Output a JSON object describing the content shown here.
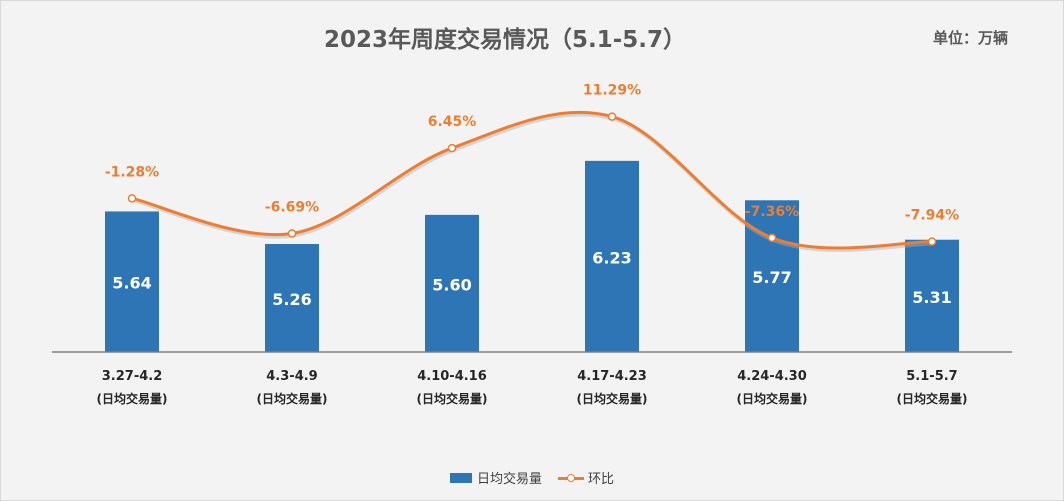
{
  "chart_data": {
    "type": "bar",
    "title": "2023年周度交易情况（5.1-5.7）",
    "unit_label": "单位：万辆",
    "categories": [
      "3.27-4.2",
      "4.3-4.9",
      "4.10-4.16",
      "4.17-4.23",
      "4.24-4.30",
      "5.1-5.7"
    ],
    "category_sublabel": "(日均交易量)",
    "series": [
      {
        "name": "日均交易量",
        "type": "bar",
        "values": [
          5.64,
          5.26,
          5.6,
          6.23,
          5.77,
          5.31
        ],
        "labels": [
          "5.64",
          "5.26",
          "5.60",
          "6.23",
          "5.77",
          "5.31"
        ],
        "color": "#2e75b6"
      },
      {
        "name": "环比",
        "type": "line",
        "values": [
          -1.28,
          -6.69,
          6.45,
          11.29,
          -7.36,
          -7.94
        ],
        "labels": [
          "-1.28%",
          "-6.69%",
          "6.45%",
          "11.29%",
          "-7.36%",
          "-7.94%"
        ],
        "color": "#ed7d31"
      }
    ],
    "bar_ylim": [
      4,
      6.8
    ],
    "line_ylim": [
      -20,
      20
    ],
    "legend_position": "bottom",
    "grid": false
  }
}
